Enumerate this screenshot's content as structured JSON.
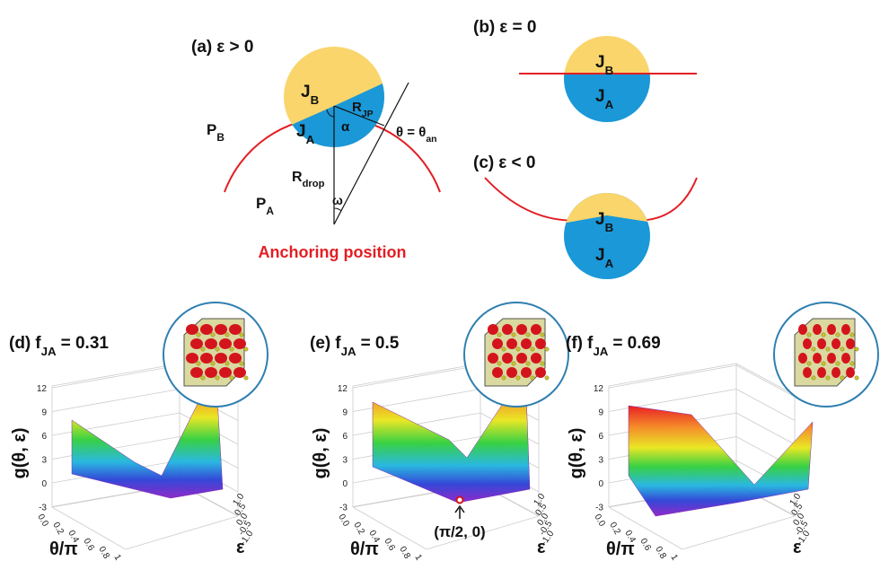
{
  "panel_a": {
    "label": "(a)",
    "condition": "ε > 0",
    "particle_top": {
      "base": "J",
      "sub": "B"
    },
    "particle_bottom": {
      "base": "J",
      "sub": "A"
    },
    "radius_particle": {
      "base": "R",
      "sub": "JP"
    },
    "alpha": "α",
    "contact_angle": {
      "base": "θ = θ",
      "sub": "an"
    },
    "outer_phase": {
      "base": "P",
      "sub": "B"
    },
    "inner_phase": {
      "base": "P",
      "sub": "A"
    },
    "radius_drop": {
      "base": "R",
      "sub": "drop"
    },
    "omega": "ω",
    "caption": "Anchoring position"
  },
  "panel_b": {
    "label": "(b)",
    "condition": "ε = 0",
    "particle_top": {
      "base": "J",
      "sub": "B"
    },
    "particle_bottom": {
      "base": "J",
      "sub": "A"
    }
  },
  "panel_c": {
    "label": "(c)",
    "condition": "ε < 0",
    "particle_top": {
      "base": "J",
      "sub": "B"
    },
    "particle_bottom": {
      "base": "J",
      "sub": "A"
    }
  },
  "axes": {
    "z_label": "g(θ, ε)",
    "x_label": "θ/π",
    "y_label": "ε",
    "z_ticks": [
      12,
      9,
      6,
      3,
      0,
      -3
    ],
    "x_ticks": [
      "0.0",
      "0.2",
      "0.4",
      "0.6",
      "0.8",
      "1.0"
    ],
    "y_ticks": [
      "-1.0",
      "-0.5",
      "0.0",
      "0.5",
      "1.0"
    ]
  },
  "plots": [
    {
      "label": "(d)",
      "fraction": {
        "base": "f",
        "sub": "JA"
      },
      "value": "= 0.31"
    },
    {
      "label": "(e)",
      "fraction": {
        "base": "f",
        "sub": "JA"
      },
      "value": "= 0.5"
    },
    {
      "label": "(f)",
      "fraction": {
        "base": "f",
        "sub": "JA"
      },
      "value": "= 0.69"
    }
  ],
  "annotation": "(π/2, 0)"
}
